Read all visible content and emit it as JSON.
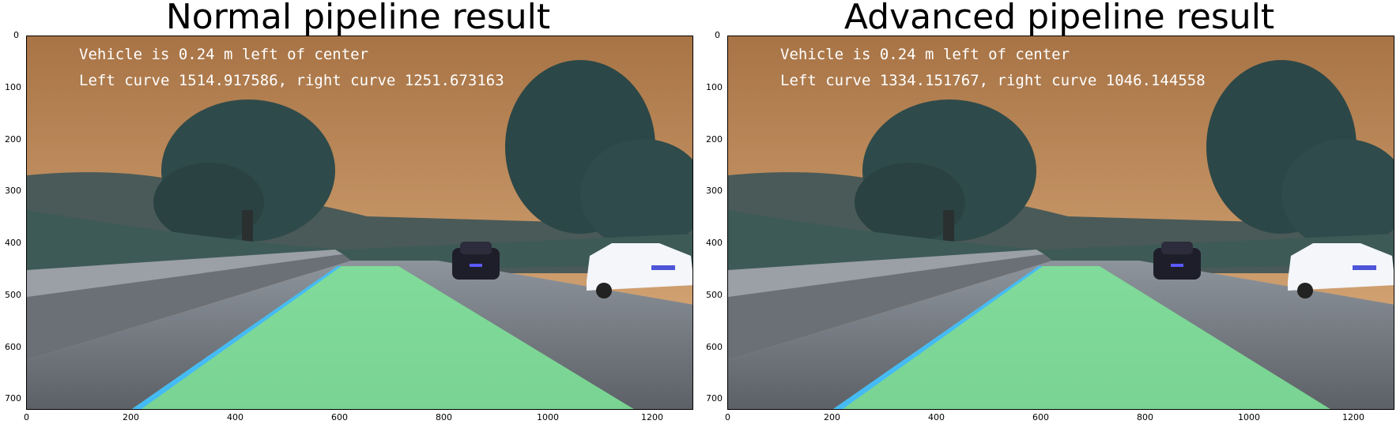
{
  "panels": [
    {
      "title": "Normal pipeline result",
      "overlay_line1": "Vehicle is 0.24 m left of center",
      "overlay_line2": "Left curve 1514.917586, right curve 1251.673163"
    },
    {
      "title": "Advanced pipeline result",
      "overlay_line1": "Vehicle is 0.24 m left of center",
      "overlay_line2": "Left curve 1334.151767, right curve 1046.144558"
    }
  ],
  "axes": {
    "x_ticks": [
      "0",
      "200",
      "400",
      "600",
      "800",
      "1000",
      "1200"
    ],
    "y_ticks": [
      "0",
      "100",
      "200",
      "300",
      "400",
      "500",
      "600",
      "700"
    ],
    "xlim": [
      0,
      1280
    ],
    "ylim": [
      720,
      0
    ]
  },
  "colors": {
    "sky_top": "#b07a4a",
    "sky_bottom": "#d9a877",
    "lane_fill": "#7fe89a",
    "lane_edge": "#3fb8ff",
    "overlay_text": "#ffffff"
  }
}
